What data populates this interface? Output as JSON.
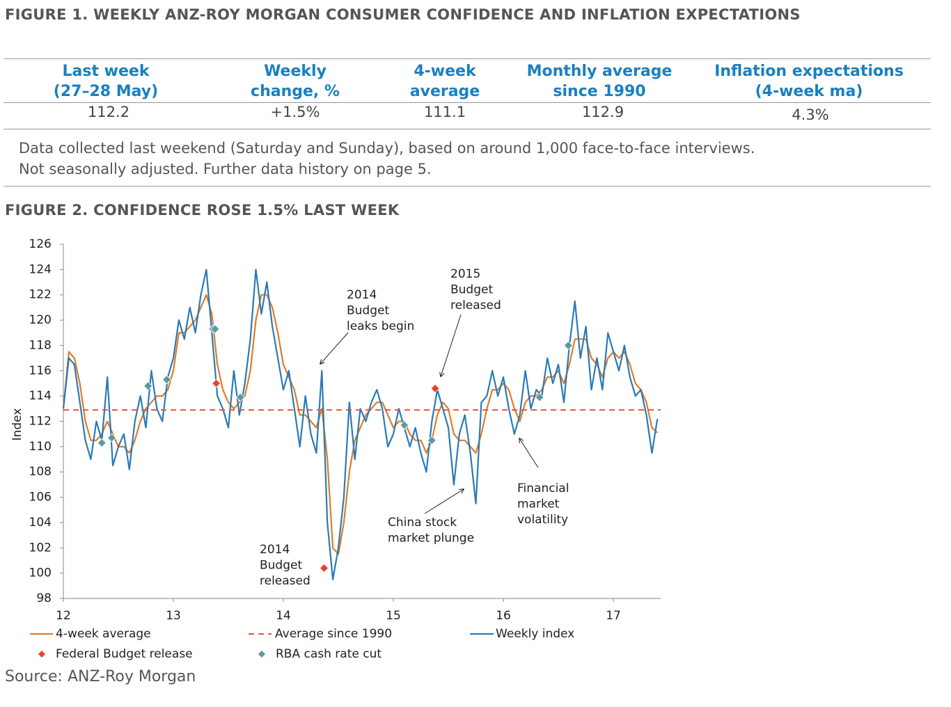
{
  "figure1": {
    "title": "FIGURE 1. WEEKLY ANZ-ROY MORGAN CONSUMER CONFIDENCE AND INFLATION EXPECTATIONS",
    "table": {
      "header": [
        [
          "Last week",
          "(27–28 May)"
        ],
        [
          "Weekly",
          "change, %"
        ],
        [
          "4-week",
          "average"
        ],
        [
          "Monthly average",
          "since 1990"
        ],
        [
          "Inflation expectations",
          "(4-week ma)"
        ]
      ],
      "rows": [
        [
          "112.2",
          "+1.5%",
          "111.1",
          "112.9",
          "4.3%"
        ]
      ]
    },
    "note": [
      "Data collected last weekend (Saturday and Sunday), based on around 1,000 face-to-face interviews.",
      "Not seasonally adjusted. Further data history on page 5."
    ]
  },
  "chart_data": {
    "type": "line",
    "title": "FIGURE 2. CONFIDENCE ROSE 1.5% LAST WEEK",
    "y_label": "Index",
    "x": [
      12,
      12.05,
      12.1,
      12.15,
      12.2,
      12.25,
      12.3,
      12.35,
      12.4,
      12.45,
      12.5,
      12.55,
      12.6,
      12.65,
      12.7,
      12.75,
      12.8,
      12.85,
      12.9,
      12.95,
      13,
      13.05,
      13.1,
      13.15,
      13.2,
      13.25,
      13.3,
      13.35,
      13.4,
      13.45,
      13.5,
      13.55,
      13.6,
      13.65,
      13.7,
      13.75,
      13.8,
      13.85,
      13.9,
      13.95,
      14,
      14.05,
      14.1,
      14.15,
      14.2,
      14.25,
      14.3,
      14.35,
      14.4,
      14.45,
      14.5,
      14.55,
      14.6,
      14.65,
      14.7,
      14.75,
      14.8,
      14.85,
      14.9,
      14.95,
      15,
      15.05,
      15.1,
      15.15,
      15.2,
      15.25,
      15.3,
      15.35,
      15.4,
      15.45,
      15.5,
      15.55,
      15.6,
      15.65,
      15.7,
      15.75,
      15.8,
      15.85,
      15.9,
      15.95,
      16,
      16.05,
      16.1,
      16.15,
      16.2,
      16.25,
      16.3,
      16.35,
      16.4,
      16.45,
      16.5,
      16.55,
      16.6,
      16.65,
      16.7,
      16.75,
      16.8,
      16.85,
      16.9,
      16.95,
      17,
      17.05,
      17.1,
      17.15,
      17.2,
      17.25,
      17.3,
      17.35,
      17.4
    ],
    "series": [
      {
        "name": "4-week average",
        "color": "#e07b27",
        "values": [
          113,
          117.5,
          117,
          115,
          112,
          110.5,
          110.5,
          111,
          112,
          111,
          110,
          110,
          109.5,
          110.5,
          112,
          113,
          113.5,
          114,
          114,
          114.5,
          116,
          119,
          119,
          119.5,
          120,
          121,
          122,
          120.5,
          116.5,
          114.5,
          113.5,
          113,
          113.5,
          114,
          116,
          120,
          122,
          122,
          121,
          119,
          116.5,
          115.5,
          114.5,
          112.5,
          112.5,
          112,
          111.5,
          113,
          109,
          102,
          101.5,
          104,
          108,
          110.5,
          111.5,
          112.5,
          113,
          113.5,
          113.5,
          112.5,
          111.5,
          112,
          112,
          111,
          110.5,
          110.5,
          109.5,
          110.5,
          112.5,
          113.5,
          113,
          111,
          110.5,
          110.5,
          110,
          109.5,
          111,
          113,
          114.5,
          114.5,
          115,
          114.5,
          113,
          112,
          113.5,
          114,
          114,
          114.5,
          115.5,
          115.5,
          116,
          115,
          116.5,
          118.5,
          118.5,
          118.5,
          117,
          116.5,
          115.5,
          117,
          117.5,
          117,
          117.5,
          116.5,
          115,
          114.5,
          113.5,
          111.5,
          111.1
        ]
      },
      {
        "name": "Weekly index",
        "color": "#2a7ab8",
        "values": [
          113,
          117,
          116.5,
          113.5,
          110.5,
          109,
          112,
          110.5,
          115.5,
          108.5,
          110,
          111,
          108.2,
          112,
          114,
          111.5,
          116,
          113,
          112,
          115.5,
          117,
          120,
          118.5,
          121,
          119,
          122,
          124,
          119,
          114,
          113,
          111.5,
          116,
          112.5,
          115,
          118.5,
          124,
          120.5,
          123,
          119.5,
          117,
          114.5,
          116,
          113,
          110,
          114,
          111,
          109.5,
          116,
          104,
          99.5,
          102,
          106,
          113.5,
          109,
          113,
          112,
          113.5,
          114.5,
          113,
          110,
          111,
          113,
          111.5,
          110,
          111.5,
          109.5,
          108,
          112,
          114.5,
          113,
          111.5,
          107,
          111,
          112.5,
          109.5,
          105.5,
          113.5,
          114,
          116,
          114,
          115.5,
          113,
          111,
          112.5,
          116,
          113,
          114.5,
          114,
          117,
          115,
          116.5,
          113.5,
          118,
          121.5,
          117,
          119.5,
          114.5,
          117,
          114.5,
          119,
          117.5,
          116,
          118,
          115.5,
          114,
          114.5,
          112.5,
          109.5,
          112.2
        ]
      }
    ],
    "reference_line": {
      "name": "Average since 1990",
      "value": 112.9,
      "color": "#e8553b",
      "dashed": true
    },
    "markers": [
      {
        "name": "Federal Budget release",
        "color": "#e8432e",
        "x": [
          13.39,
          14.37,
          15.38
        ],
        "values": [
          115,
          100.4,
          114.6
        ]
      },
      {
        "name": "RBA cash rate cut",
        "color": "#5a9aa0",
        "x": [
          12.35,
          12.44,
          12.77,
          12.94,
          13.36,
          13.38,
          13.61,
          15.1,
          15.35,
          16.33,
          16.59
        ],
        "values": [
          110.3,
          110.7,
          114.8,
          115.3,
          119.3,
          119.3,
          113.9,
          111.7,
          110.5,
          113.9,
          118
        ]
      }
    ],
    "annotations": [
      [
        "2014",
        "Budget",
        "leaks begin"
      ],
      [
        "2015",
        "Budget",
        "released"
      ],
      [
        "China stock",
        "market plunge"
      ],
      [
        "Financial",
        "market",
        "volatility"
      ],
      [
        "2014",
        "Budget",
        "released"
      ]
    ],
    "xlim": [
      12,
      17.43
    ],
    "xticks": [
      12,
      13,
      14,
      15,
      16,
      17
    ],
    "ylim": [
      98,
      126
    ],
    "yticks": [
      98,
      100,
      102,
      104,
      106,
      108,
      110,
      112,
      114,
      116,
      118,
      120,
      122,
      124,
      126
    ]
  },
  "source": "Source: ANZ-Roy Morgan"
}
